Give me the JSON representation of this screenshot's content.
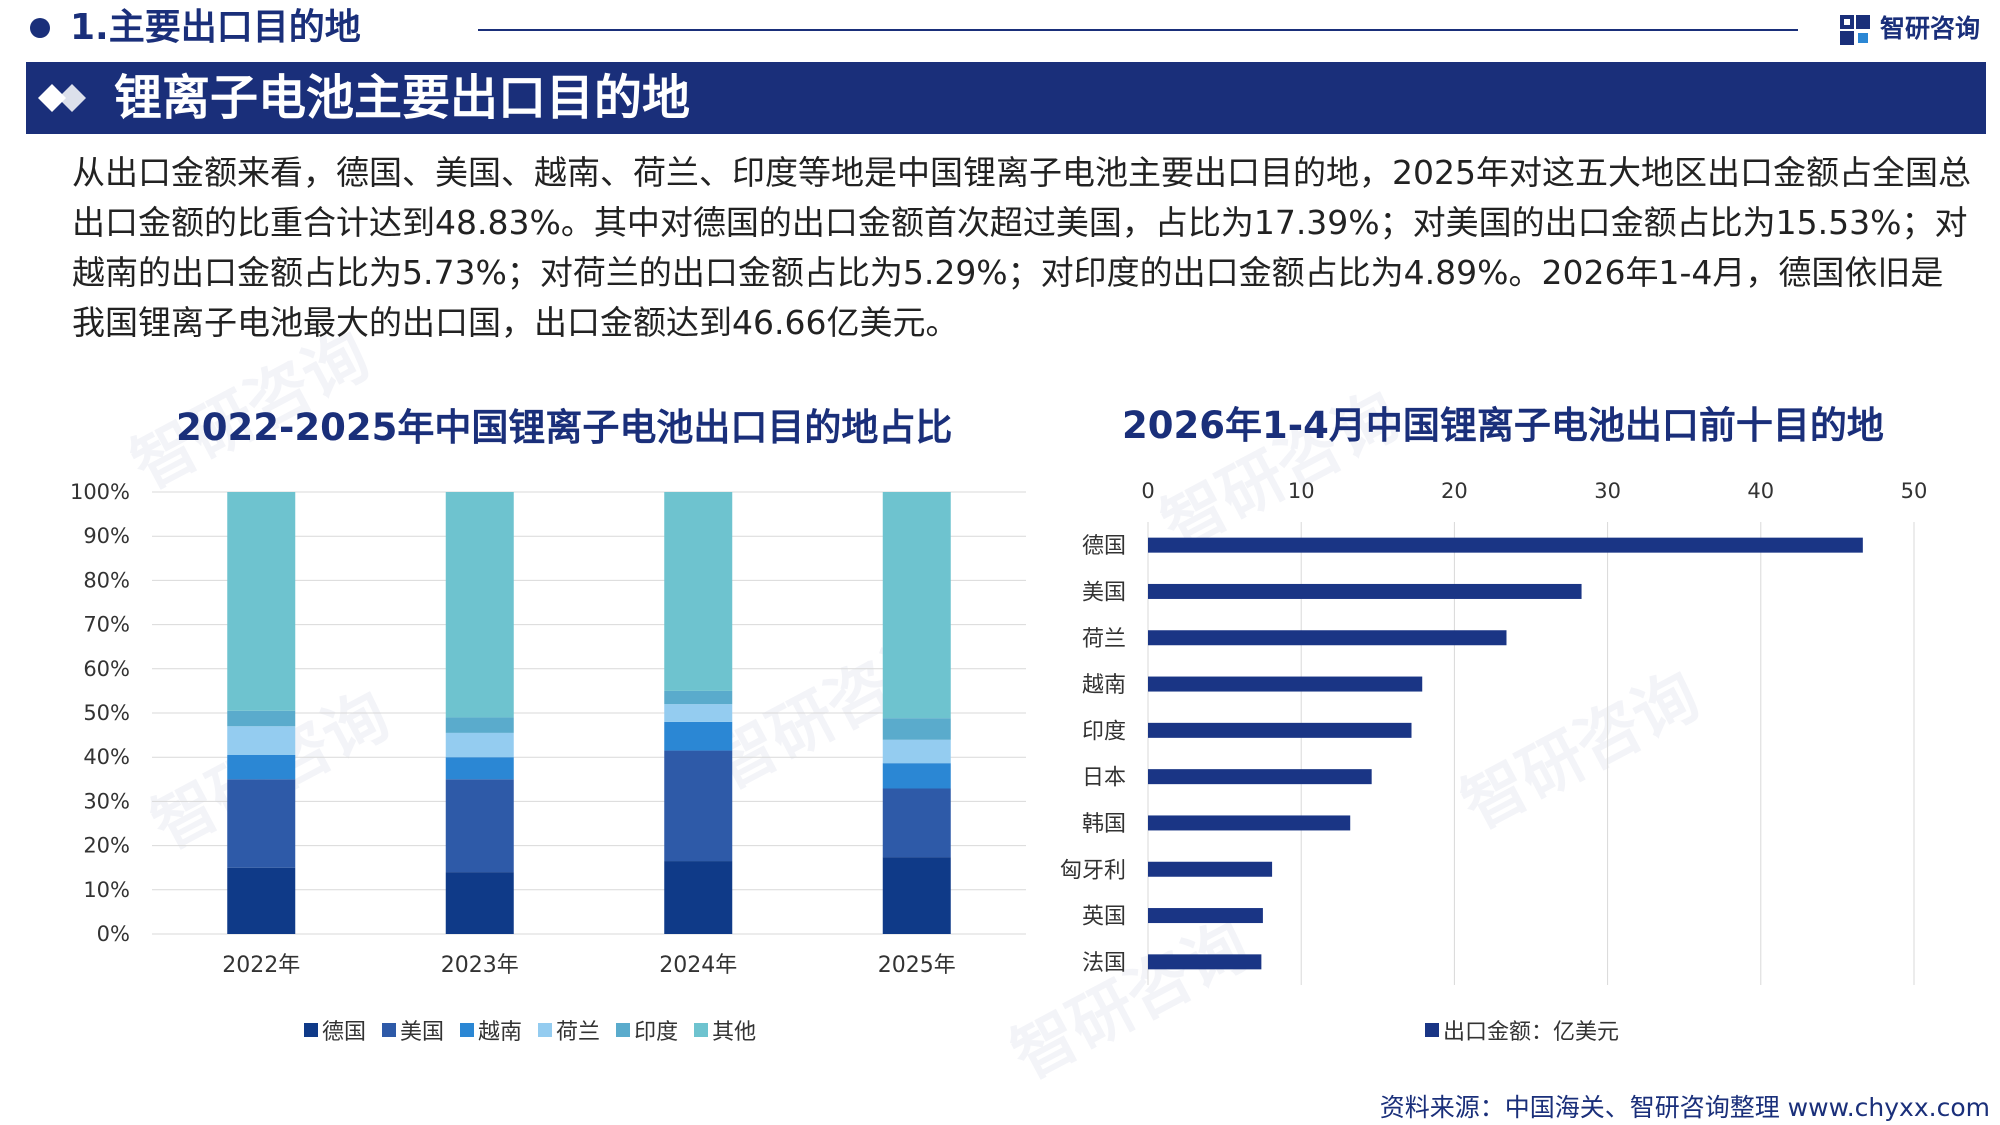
{
  "header": {
    "section_title": "1.主要出口目的地",
    "brand": "智研咨询",
    "banner_title": "锂离子电池主要出口目的地"
  },
  "summary": "从出口金额来看，德国、美国、越南、荷兰、印度等地是中国锂离子电池主要出口目的地，2025年对这五大地区出口金额占全国总出口金额的比重合计达到48.83%。其中对德国的出口金额首次超过美国，占比为17.39%；对美国的出口金额占比为15.53%；对越南的出口金额占比为5.73%；对荷兰的出口金额占比为5.29%；对印度的出口金额占比为4.89%。2026年1-4月，德国依旧是我国锂离子电池最大的出口国，出口金额达到46.66亿美元。",
  "colors": {
    "navy": "#1a2f7a",
    "bar_blue": "#1a3585",
    "series": [
      "#0f3a88",
      "#2e5aa8",
      "#2b87d4",
      "#94ccf0",
      "#5aabcc",
      "#6ec3cf"
    ]
  },
  "chart_data": [
    {
      "type": "bar",
      "stacked": true,
      "title": "2022-2025年中国锂离子电池出口目的地占比",
      "categories": [
        "2022年",
        "2023年",
        "2024年",
        "2025年"
      ],
      "series": [
        {
          "name": "德国",
          "values": [
            15.0,
            14.0,
            16.5,
            17.39
          ]
        },
        {
          "name": "美国",
          "values": [
            20.0,
            21.0,
            25.0,
            15.53
          ]
        },
        {
          "name": "越南",
          "values": [
            5.5,
            5.0,
            6.5,
            5.73
          ]
        },
        {
          "name": "荷兰",
          "values": [
            6.5,
            5.5,
            4.0,
            5.29
          ]
        },
        {
          "name": "印度",
          "values": [
            3.5,
            3.5,
            3.0,
            4.89
          ]
        },
        {
          "name": "其他",
          "values": [
            49.5,
            51.0,
            45.0,
            51.17
          ]
        }
      ],
      "ylim": [
        0,
        100
      ],
      "yticks": [
        "0%",
        "10%",
        "20%",
        "30%",
        "40%",
        "50%",
        "60%",
        "70%",
        "80%",
        "90%",
        "100%"
      ],
      "grid": true,
      "legend_position": "bottom"
    },
    {
      "type": "bar",
      "orientation": "horizontal",
      "title": "2026年1-4月中国锂离子电池出口前十目的地",
      "categories": [
        "德国",
        "美国",
        "荷兰",
        "越南",
        "印度",
        "日本",
        "韩国",
        "匈牙利",
        "英国",
        "法国"
      ],
      "series": [
        {
          "name": "出口金额：亿美元",
          "values": [
            46.66,
            28.3,
            23.4,
            17.9,
            17.2,
            14.6,
            13.2,
            8.1,
            7.5,
            7.4
          ]
        }
      ],
      "xlim": [
        0,
        50
      ],
      "xticks": [
        "0",
        "10",
        "20",
        "30",
        "40",
        "50"
      ],
      "grid": true,
      "legend_position": "bottom"
    }
  ],
  "source": "资料来源：中国海关、智研咨询整理 www.chyxx.com"
}
